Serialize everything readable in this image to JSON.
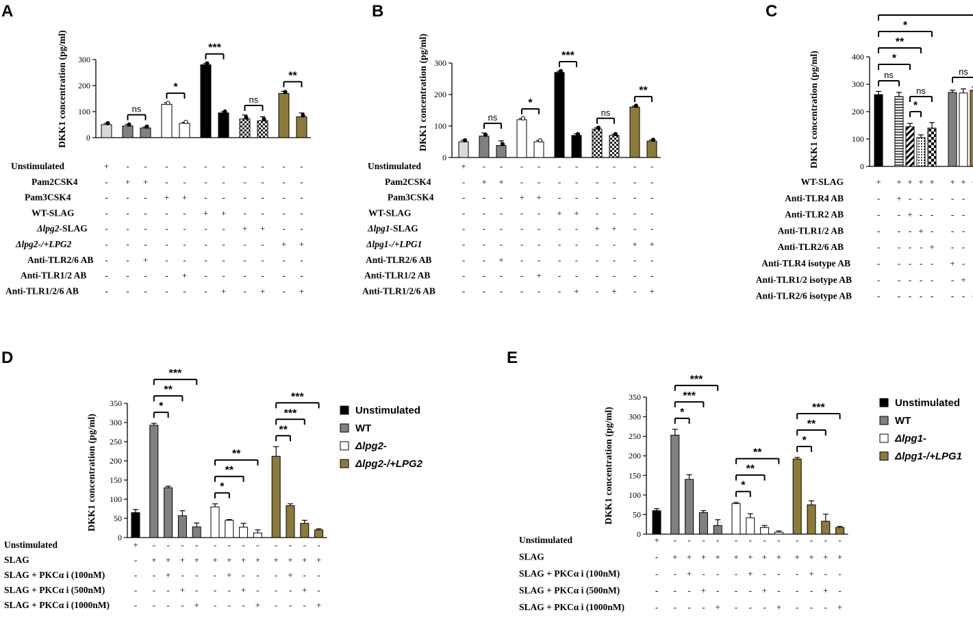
{
  "chart_data": [
    {
      "panel": "A",
      "type": "bar",
      "ylabel": "DKK1 concentration (pg/ml)",
      "ylim": [
        0,
        300
      ],
      "yticks": [
        "0",
        "100",
        "200",
        "300"
      ],
      "values": [
        50,
        45,
        37,
        128,
        55,
        280,
        95,
        72,
        65,
        170,
        80
      ],
      "errors": [
        5,
        6,
        4,
        6,
        4,
        5,
        5,
        15,
        15,
        8,
        15
      ],
      "fills": [
        "lightgray",
        "gray",
        "gray",
        "white",
        "white",
        "black",
        "black",
        "check",
        "check",
        "olive",
        "olive"
      ],
      "rows": [
        {
          "label": "Unstimulated",
          "signs": [
            "+",
            "-",
            "-",
            "-",
            "-",
            "-",
            "-",
            "-",
            "-",
            "-",
            "-"
          ]
        },
        {
          "label": "Pam2CSK4",
          "signs": [
            "-",
            "+",
            "+",
            "-",
            "-",
            "-",
            "-",
            "-",
            "-",
            "-",
            "-"
          ]
        },
        {
          "label": "Pam3CSK4",
          "signs": [
            "-",
            "-",
            "-",
            "+",
            "+",
            "-",
            "-",
            "-",
            "-",
            "-",
            "-"
          ]
        },
        {
          "label": "WT-SLAG",
          "signs": [
            "-",
            "-",
            "-",
            "-",
            "-",
            "+",
            "+",
            "-",
            "-",
            "-",
            "-"
          ]
        },
        {
          "label": "Δlpg2-SLAG",
          "italic": true,
          "signs": [
            "-",
            "-",
            "-",
            "-",
            "-",
            "-",
            "-",
            "+",
            "+",
            "-",
            "-"
          ]
        },
        {
          "label": "Δlpg2-/+LPG2",
          "italic": true,
          "signs": [
            "-",
            "-",
            "-",
            "-",
            "-",
            "-",
            "-",
            "-",
            "-",
            "+",
            "+"
          ]
        },
        {
          "label": "Anti-TLR2/6 AB",
          "signs": [
            "-",
            "-",
            "+",
            "-",
            "-",
            "-",
            "-",
            "-",
            "-",
            "-",
            "-"
          ]
        },
        {
          "label": "Anti-TLR1/2 AB",
          "signs": [
            "-",
            "-",
            "-",
            "-",
            "+",
            "-",
            "-",
            "-",
            "-",
            "-",
            "-"
          ]
        },
        {
          "label": "Anti-TLR1/2/6 AB",
          "signs": [
            "-",
            "-",
            "-",
            "-",
            "-",
            "-",
            "+",
            "-",
            "+",
            "-",
            "+"
          ]
        }
      ],
      "significance": [
        {
          "from": 1,
          "to": 2,
          "label": "ns"
        },
        {
          "from": 3,
          "to": 4,
          "label": "*"
        },
        {
          "from": 5,
          "to": 6,
          "label": "***"
        },
        {
          "from": 7,
          "to": 8,
          "label": "ns"
        },
        {
          "from": 9,
          "to": 10,
          "label": "**"
        }
      ]
    },
    {
      "panel": "B",
      "type": "bar",
      "ylabel": "DKK1 concentration (pg/ml)",
      "ylim": [
        0,
        300
      ],
      "yticks": [
        "0",
        "100",
        "200",
        "300"
      ],
      "values": [
        50,
        68,
        38,
        120,
        50,
        270,
        70,
        90,
        70,
        160,
        52
      ],
      "errors": [
        5,
        10,
        15,
        4,
        4,
        4,
        5,
        4,
        4,
        3,
        4
      ],
      "fills": [
        "lightgray",
        "gray",
        "gray",
        "white",
        "white",
        "black",
        "black",
        "check",
        "check",
        "olive",
        "olive"
      ],
      "rows": [
        {
          "label": "Unstimulated",
          "signs": [
            "+",
            "-",
            "-",
            "-",
            "-",
            "-",
            "-",
            "-",
            "-",
            "-",
            "-"
          ]
        },
        {
          "label": "Pam2CSK4",
          "signs": [
            "-",
            "+",
            "+",
            "-",
            "-",
            "-",
            "-",
            "-",
            "-",
            "-",
            "-"
          ]
        },
        {
          "label": "Pam3CSK4",
          "signs": [
            "-",
            "-",
            "-",
            "+",
            "+",
            "-",
            "-",
            "-",
            "-",
            "-",
            "-"
          ]
        },
        {
          "label": "WT-SLAG",
          "signs": [
            "-",
            "-",
            "-",
            "-",
            "-",
            "+",
            "+",
            "-",
            "-",
            "-",
            "-"
          ]
        },
        {
          "label": "Δlpg1-SLAG",
          "italic": true,
          "signs": [
            "-",
            "-",
            "-",
            "-",
            "-",
            "-",
            "-",
            "+",
            "+",
            "-",
            "-"
          ]
        },
        {
          "label": "Δlpg1-/+LPG1",
          "italic": true,
          "signs": [
            "-",
            "-",
            "-",
            "-",
            "-",
            "-",
            "-",
            "-",
            "-",
            "+",
            "+"
          ]
        },
        {
          "label": "Anti-TLR2/6 AB",
          "signs": [
            "-",
            "-",
            "+",
            "-",
            "-",
            "-",
            "-",
            "-",
            "-",
            "-",
            "-"
          ]
        },
        {
          "label": "Anti-TLR1/2 AB",
          "signs": [
            "-",
            "-",
            "-",
            "-",
            "+",
            "-",
            "-",
            "-",
            "-",
            "-",
            "-"
          ]
        },
        {
          "label": "Anti-TLR1/2/6 AB",
          "signs": [
            "-",
            "-",
            "-",
            "-",
            "-",
            "-",
            "+",
            "-",
            "+",
            "-",
            "+"
          ]
        }
      ],
      "significance": [
        {
          "from": 1,
          "to": 2,
          "label": "ns"
        },
        {
          "from": 3,
          "to": 4,
          "label": "*"
        },
        {
          "from": 5,
          "to": 6,
          "label": "***"
        },
        {
          "from": 7,
          "to": 8,
          "label": "ns"
        },
        {
          "from": 9,
          "to": 10,
          "label": "**"
        }
      ]
    },
    {
      "panel": "C",
      "type": "bar",
      "ylabel": "DKK1 concentration (pg/ml)",
      "ylim": [
        0,
        400
      ],
      "yticks": [
        "0",
        "100",
        "200",
        "300",
        "400"
      ],
      "values": [
        262,
        255,
        145,
        105,
        140,
        270,
        268,
        278
      ],
      "errors": [
        12,
        15,
        12,
        10,
        20,
        8,
        15,
        12
      ],
      "fills": [
        "black",
        "hatch",
        "diag",
        "dots",
        "checker",
        "gray",
        "white",
        "olive"
      ],
      "rows": [
        {
          "label": "WT-SLAG",
          "signs": [
            "+",
            "+",
            "+",
            "+",
            "+",
            "+",
            "+",
            "+"
          ]
        },
        {
          "label": "Anti-TLR4 AB",
          "signs": [
            "-",
            "+",
            "-",
            "-",
            "-",
            "-",
            "-",
            "-"
          ]
        },
        {
          "label": "Anti-TLR2 AB",
          "signs": [
            "-",
            "-",
            "+",
            "-",
            "-",
            "-",
            "-",
            "-"
          ]
        },
        {
          "label": "Anti-TLR1/2 AB",
          "signs": [
            "-",
            "-",
            "-",
            "+",
            "-",
            "-",
            "-",
            "-"
          ]
        },
        {
          "label": "Anti-TLR2/6 AB",
          "signs": [
            "-",
            "-",
            "-",
            "-",
            "+",
            "-",
            "-",
            "-"
          ]
        },
        {
          "label": "Anti-TLR4 isotype AB",
          "signs": [
            "-",
            "-",
            "-",
            "-",
            "-",
            "+",
            "-",
            "-"
          ]
        },
        {
          "label": "Anti-TLR1/2 isotype AB",
          "signs": [
            "-",
            "-",
            "-",
            "-",
            "-",
            "-",
            "+",
            "-"
          ]
        },
        {
          "label": "Anti-TLR2/6 isotype AB",
          "signs": [
            "-",
            "-",
            "-",
            "-",
            "-",
            "-",
            "-",
            "+"
          ]
        }
      ],
      "significance": [
        {
          "from": 0,
          "to": 7,
          "label": ""
        },
        {
          "from": 0,
          "to": 4,
          "label": "*"
        },
        {
          "from": 0,
          "to": 3,
          "label": "**"
        },
        {
          "from": 0,
          "to": 2,
          "label": "*"
        },
        {
          "from": 0,
          "to": 1,
          "label": "ns"
        },
        {
          "from": 2,
          "to": 4,
          "label": "ns"
        },
        {
          "from": 2,
          "to": 3,
          "label": "*"
        },
        {
          "from": 5,
          "to": 7,
          "label": "ns"
        }
      ]
    },
    {
      "panel": "D",
      "type": "bar",
      "ylabel": "DKK1 concentration (pg/ml)",
      "ylim": [
        0,
        350
      ],
      "yticks": [
        "0",
        "50",
        "100",
        "150",
        "200",
        "250",
        "300",
        "350"
      ],
      "values": [
        65,
        293,
        130,
        57,
        28,
        80,
        45,
        27,
        12,
        212,
        83,
        37,
        20
      ],
      "errors": [
        8,
        5,
        4,
        13,
        10,
        8,
        2,
        10,
        8,
        25,
        5,
        8,
        3
      ],
      "fills": [
        "black",
        "gray",
        "gray",
        "gray",
        "gray",
        "white",
        "white",
        "white",
        "white",
        "olive",
        "olive",
        "olive",
        "olive"
      ],
      "legend": [
        {
          "label": "Unstimulated",
          "fill": "black"
        },
        {
          "label": "WT",
          "fill": "gray"
        },
        {
          "label": "Δlpg2-",
          "fill": "white",
          "italic": true
        },
        {
          "label": "Δlpg2-/+LPG2",
          "fill": "olive",
          "italic": true
        }
      ],
      "rows": [
        {
          "label": "Unstimulated",
          "signs": [
            "+",
            "-",
            "-",
            "-",
            "-",
            "-",
            "-",
            "-",
            "-",
            "-",
            "-",
            "-",
            "-"
          ]
        },
        {
          "label": "SLAG",
          "signs": [
            "-",
            "+",
            "+",
            "+",
            "+",
            "+",
            "+",
            "+",
            "+",
            "+",
            "+",
            "+",
            "+"
          ]
        },
        {
          "label": "SLAG + PKCα i (100nM)",
          "signs": [
            "-",
            "-",
            "+",
            "-",
            "-",
            "-",
            "+",
            "-",
            "-",
            "-",
            "+",
            "-",
            "-"
          ]
        },
        {
          "label": "SLAG + PKCα i (500nM)",
          "signs": [
            "-",
            "-",
            "-",
            "+",
            "-",
            "-",
            "-",
            "+",
            "-",
            "-",
            "-",
            "+",
            "-"
          ]
        },
        {
          "label": "SLAG + PKCα i (1000nM)",
          "signs": [
            "-",
            "-",
            "-",
            "-",
            "+",
            "-",
            "-",
            "-",
            "+",
            "-",
            "-",
            "-",
            "+"
          ]
        }
      ],
      "significance": [
        {
          "from": 1,
          "to": 4,
          "label": "***"
        },
        {
          "from": 1,
          "to": 3,
          "label": "**"
        },
        {
          "from": 1,
          "to": 2,
          "label": "*"
        },
        {
          "from": 5,
          "to": 8,
          "label": "**"
        },
        {
          "from": 5,
          "to": 7,
          "label": "**"
        },
        {
          "from": 5,
          "to": 6,
          "label": "*"
        },
        {
          "from": 9,
          "to": 12,
          "label": "***"
        },
        {
          "from": 9,
          "to": 11,
          "label": "***"
        },
        {
          "from": 9,
          "to": 10,
          "label": "**"
        }
      ]
    },
    {
      "panel": "E",
      "type": "bar",
      "ylabel": "DKK1 concentration (pg/ml)",
      "ylim": [
        0,
        350
      ],
      "yticks": [
        "0",
        "50",
        "100",
        "150",
        "200",
        "250",
        "300",
        "350"
      ],
      "values": [
        60,
        253,
        140,
        55,
        22,
        78,
        42,
        17,
        5,
        192,
        75,
        33,
        17
      ],
      "errors": [
        5,
        15,
        12,
        5,
        15,
        3,
        10,
        5,
        3,
        4,
        10,
        18,
        3
      ],
      "fills": [
        "black",
        "gray",
        "gray",
        "gray",
        "gray",
        "white",
        "white",
        "white",
        "white",
        "olive",
        "olive",
        "olive",
        "olive"
      ],
      "legend": [
        {
          "label": "Unstimulated",
          "fill": "black"
        },
        {
          "label": "WT",
          "fill": "gray"
        },
        {
          "label": "Δlpg1-",
          "fill": "white",
          "italic": true
        },
        {
          "label": "Δlpg1-/+LPG1",
          "fill": "olive",
          "italic": true
        }
      ],
      "rows": [
        {
          "label": "Unstimulated",
          "signs": [
            "+",
            "-",
            "-",
            "-",
            "-",
            "-",
            "-",
            "-",
            "-",
            "-",
            "-",
            "-",
            "-"
          ]
        },
        {
          "label": "SLAG",
          "signs": [
            "-",
            "+",
            "+",
            "+",
            "+",
            "+",
            "+",
            "+",
            "+",
            "+",
            "+",
            "+",
            "+"
          ]
        },
        {
          "label": "SLAG + PKCα i (100nM)",
          "signs": [
            "-",
            "-",
            "+",
            "-",
            "-",
            "-",
            "+",
            "-",
            "-",
            "-",
            "+",
            "-",
            "-"
          ]
        },
        {
          "label": "SLAG + PKCα i (500nM)",
          "signs": [
            "-",
            "-",
            "-",
            "+",
            "-",
            "-",
            "-",
            "+",
            "-",
            "-",
            "-",
            "+",
            "-"
          ]
        },
        {
          "label": "SLAG + PKCα i (1000nM)",
          "signs": [
            "-",
            "-",
            "-",
            "-",
            "+",
            "-",
            "-",
            "-",
            "+",
            "-",
            "-",
            "-",
            "+"
          ]
        }
      ],
      "significance": [
        {
          "from": 1,
          "to": 4,
          "label": "***"
        },
        {
          "from": 1,
          "to": 3,
          "label": "***"
        },
        {
          "from": 1,
          "to": 2,
          "label": "*"
        },
        {
          "from": 5,
          "to": 8,
          "label": "**"
        },
        {
          "from": 5,
          "to": 7,
          "label": "**"
        },
        {
          "from": 5,
          "to": 6,
          "label": "*"
        },
        {
          "from": 9,
          "to": 12,
          "label": "***"
        },
        {
          "from": 9,
          "to": 11,
          "label": "**"
        },
        {
          "from": 9,
          "to": 10,
          "label": "*"
        }
      ]
    }
  ],
  "colors": {
    "black": "#000000",
    "gray": "#808080",
    "lightgray": "#d9d9d9",
    "white": "#ffffff",
    "olive": "#8c7a3a",
    "check": "#555555"
  }
}
